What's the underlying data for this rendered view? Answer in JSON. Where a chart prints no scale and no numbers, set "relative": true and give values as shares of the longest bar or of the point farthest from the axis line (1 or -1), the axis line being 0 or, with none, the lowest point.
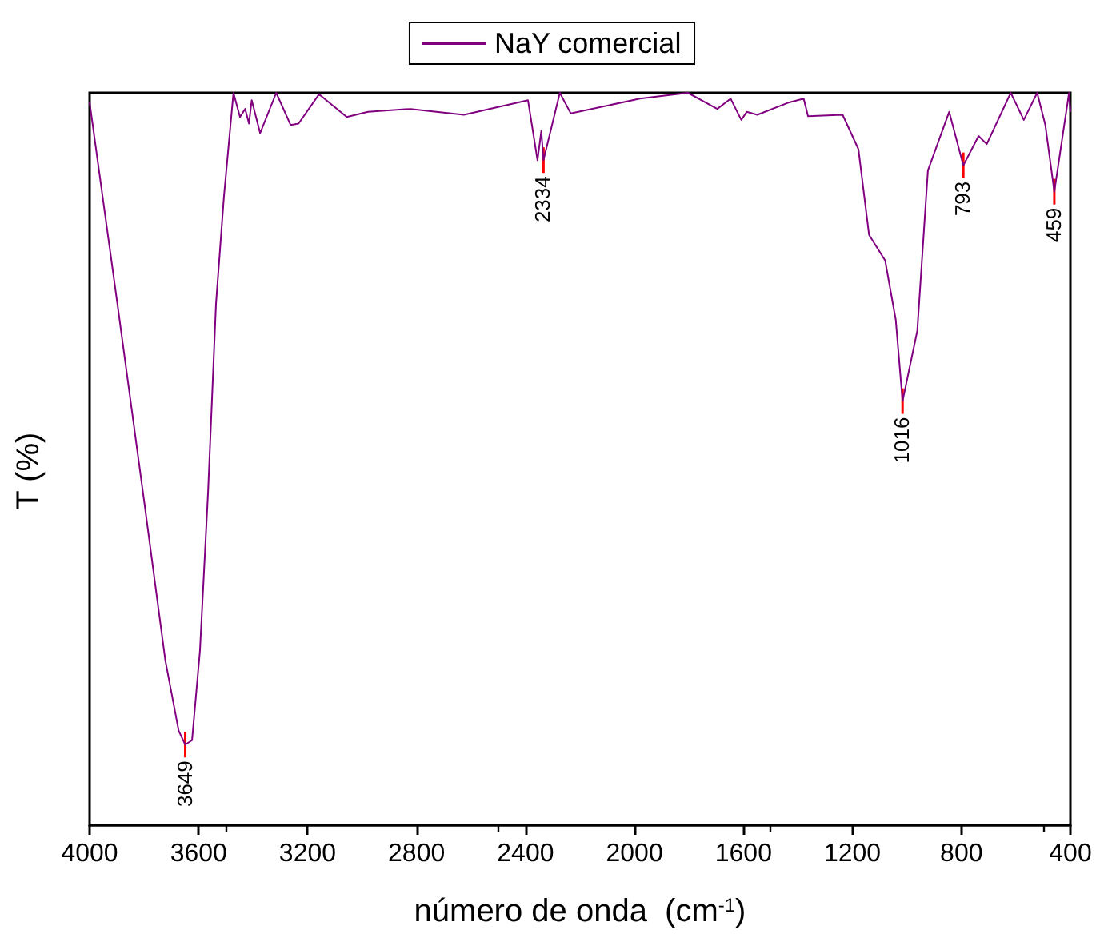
{
  "chart_data": {
    "type": "line",
    "relative": true,
    "xlabel": "número de onda  (cm$^{-1}$)",
    "ylabel": "T (%)",
    "xlim": [
      4000,
      400
    ],
    "xticks": [
      4000,
      3600,
      3200,
      2800,
      2400,
      2000,
      1600,
      1200,
      800,
      400
    ],
    "legend": "top",
    "marker": "none",
    "line_style": "solid",
    "grid": false,
    "series": [
      {
        "name": "NaY comercial",
        "color": "#800080",
        "x": [
          4000,
          3898,
          3800,
          3722,
          3673,
          3649,
          3624,
          3595,
          3565,
          3536,
          3507,
          3472,
          3448,
          3429,
          3415,
          3405,
          3374,
          3315,
          3262,
          3233,
          3158,
          3056,
          2978,
          2822,
          2626,
          2391,
          2356,
          2342,
          2334,
          2274,
          2234,
          1980,
          1804,
          1696,
          1647,
          1608,
          1588,
          1549,
          1432,
          1379,
          1363,
          1236,
          1178,
          1139,
          1080,
          1041,
          1016,
          962,
          923,
          845,
          793,
          737,
          707,
          619,
          571,
          522,
          492,
          459,
          405,
          400
        ],
        "values": [
          0.987,
          0.712,
          0.443,
          0.225,
          0.129,
          0.11,
          0.116,
          0.238,
          0.456,
          0.712,
          0.858,
          1.0,
          0.967,
          0.978,
          0.958,
          0.99,
          0.945,
          1.0,
          0.956,
          0.958,
          0.998,
          0.967,
          0.974,
          0.978,
          0.97,
          0.99,
          0.908,
          0.948,
          0.908,
          1.0,
          0.972,
          0.992,
          1.0,
          0.978,
          0.992,
          0.963,
          0.974,
          0.97,
          0.987,
          0.992,
          0.968,
          0.97,
          0.923,
          0.806,
          0.771,
          0.69,
          0.579,
          0.675,
          0.894,
          0.974,
          0.901,
          0.941,
          0.93,
          1.0,
          0.963,
          1.0,
          0.956,
          0.865,
          1.0,
          0.974
        ]
      }
    ],
    "annotations": [
      {
        "text": "3649",
        "x": 3649,
        "y": 0.11
      },
      {
        "text": "2334",
        "x": 2334,
        "y": 0.908
      },
      {
        "text": "1016",
        "x": 1016,
        "y": 0.579
      },
      {
        "text": "793",
        "x": 793,
        "y": 0.901
      },
      {
        "text": "459",
        "x": 459,
        "y": 0.865
      }
    ]
  }
}
